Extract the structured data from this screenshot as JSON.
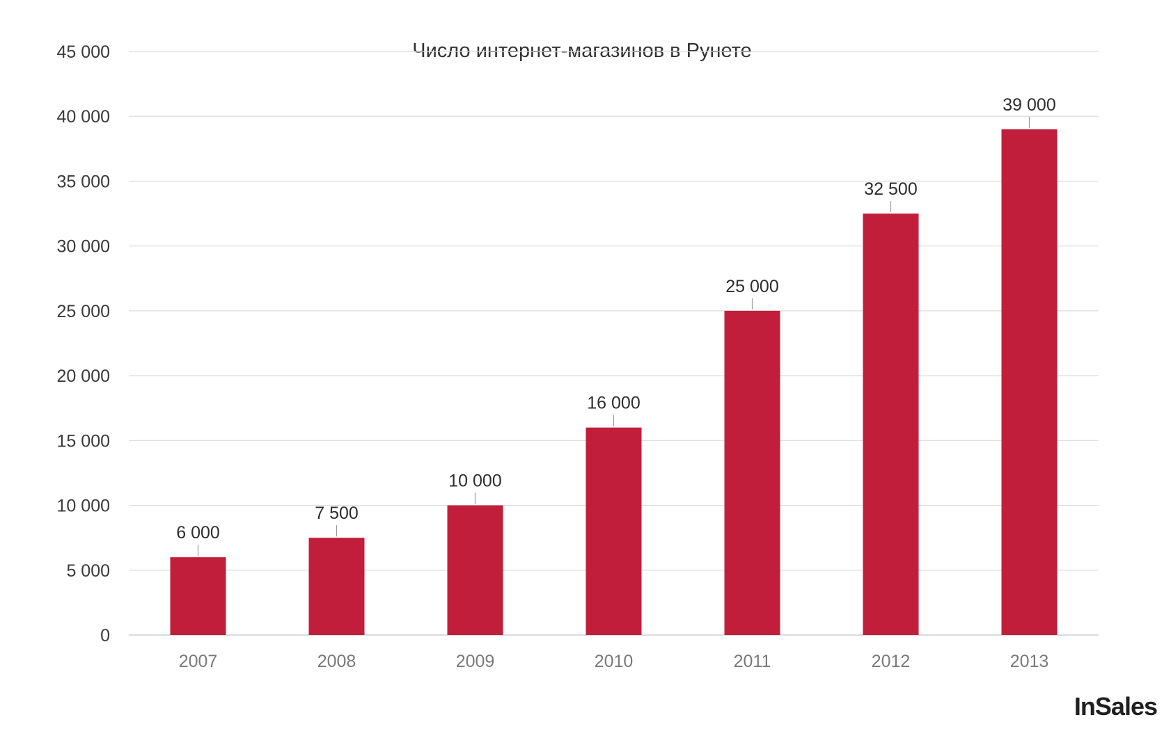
{
  "chart_data": {
    "type": "bar",
    "title": "Число интернет-магазинов в Рунете",
    "xlabel": "",
    "ylabel": "",
    "categories": [
      "2007",
      "2008",
      "2009",
      "2010",
      "2011",
      "2012",
      "2013"
    ],
    "values": [
      6000,
      7500,
      10000,
      16000,
      25000,
      32500,
      39000
    ],
    "value_labels": [
      "6 000",
      "7 500",
      "10 000",
      "16 000",
      "25 000",
      "32 500",
      "39 000"
    ],
    "ylim": [
      0,
      45000
    ],
    "yticks": [
      0,
      5000,
      10000,
      15000,
      20000,
      25000,
      30000,
      35000,
      40000,
      45000
    ],
    "ytick_labels": [
      "0",
      "5 000",
      "10 000",
      "15 000",
      "20 000",
      "25 000",
      "30 000",
      "35 000",
      "40 000",
      "45 000"
    ],
    "grid": true,
    "legend": "none",
    "bar_color": "#c01e3a"
  },
  "branding": {
    "logo": "InSales"
  }
}
